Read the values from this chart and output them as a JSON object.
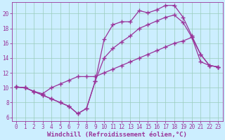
{
  "bg_color": "#cceeff",
  "line_color": "#993399",
  "marker": "+",
  "markersize": 4,
  "markeredgewidth": 1.0,
  "linewidth": 0.9,
  "xlabel": "Windchill (Refroidissement éolien,°C)",
  "xlabel_fontsize": 6.5,
  "xlabel_color": "#993399",
  "xlim": [
    -0.5,
    23.5
  ],
  "ylim": [
    5.5,
    21.5
  ],
  "xticks": [
    0,
    1,
    2,
    3,
    4,
    5,
    6,
    7,
    8,
    9,
    10,
    11,
    12,
    13,
    14,
    15,
    16,
    17,
    18,
    19,
    20,
    21,
    22,
    23
  ],
  "yticks": [
    6,
    8,
    10,
    12,
    14,
    16,
    18,
    20
  ],
  "grid_color": "#99ccbb",
  "tick_color": "#993399",
  "tick_fontsize": 5.5,
  "line1_x": [
    0,
    1,
    2,
    3,
    4,
    5,
    6,
    7,
    8,
    9,
    10,
    11,
    12,
    13,
    14,
    15,
    16,
    17,
    18,
    19,
    20,
    21,
    22,
    23
  ],
  "line1_y": [
    10.1,
    10.0,
    9.5,
    9.0,
    8.5,
    8.0,
    7.5,
    6.5,
    7.2,
    10.9,
    16.5,
    18.5,
    18.9,
    18.9,
    20.4,
    20.1,
    20.5,
    21.1,
    21.1,
    19.5,
    17.0,
    14.5,
    13.0,
    12.8
  ],
  "line2_x": [
    0,
    1,
    2,
    3,
    4,
    5,
    6,
    7,
    8,
    9,
    10,
    11,
    12,
    13,
    14,
    15,
    16,
    17,
    18,
    19,
    20,
    21,
    22,
    23
  ],
  "line2_y": [
    10.1,
    10.0,
    9.5,
    9.2,
    10.0,
    10.5,
    11.0,
    11.5,
    11.5,
    11.5,
    12.0,
    12.5,
    13.0,
    13.5,
    14.0,
    14.5,
    15.0,
    15.5,
    16.0,
    16.3,
    16.8,
    13.5,
    13.0,
    12.8
  ],
  "line3_x": [
    0,
    1,
    2,
    3,
    4,
    5,
    6,
    7,
    8,
    9,
    10,
    11,
    12,
    13,
    14,
    15,
    16,
    17,
    18,
    19,
    20,
    21,
    22,
    23
  ],
  "line3_y": [
    10.1,
    10.0,
    9.5,
    9.0,
    8.5,
    8.0,
    7.5,
    6.5,
    7.2,
    10.9,
    14.0,
    15.3,
    16.2,
    17.0,
    18.0,
    18.5,
    19.0,
    19.5,
    19.8,
    18.8,
    16.8,
    14.5,
    13.0,
    12.8
  ]
}
